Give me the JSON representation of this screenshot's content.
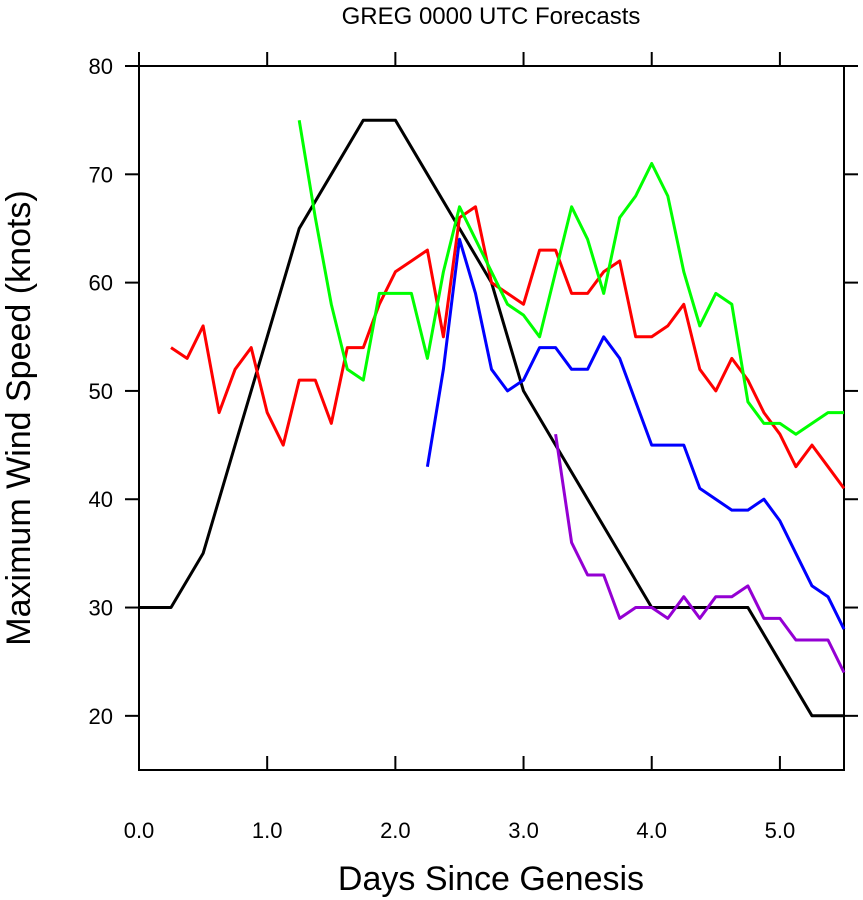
{
  "chart_data": {
    "type": "line",
    "title": "GREG 0000 UTC Forecasts",
    "xlabel": "Days Since Genesis",
    "ylabel": "Maximum Wind Speed (knots)",
    "xlim": [
      0,
      5.5
    ],
    "ylim": [
      15,
      80
    ],
    "x_ticks": [
      "0.0",
      "1.0",
      "2.0",
      "3.0",
      "4.0",
      "5.0"
    ],
    "y_ticks": [
      "20",
      "30",
      "40",
      "50",
      "60",
      "70",
      "80"
    ],
    "grid": false,
    "legend": "none",
    "series": [
      {
        "color": "#000000",
        "x": [
          0.0,
          0.25,
          0.5,
          0.75,
          1.0,
          1.25,
          1.5,
          1.75,
          2.0,
          2.25,
          2.5,
          2.75,
          3.0,
          3.25,
          3.5,
          3.75,
          4.0,
          4.25,
          4.5,
          4.75,
          5.0,
          5.25,
          5.5
        ],
        "y": [
          30,
          30,
          35,
          45,
          55,
          65,
          70,
          75,
          75,
          70,
          65,
          60,
          50,
          45,
          40,
          35,
          30,
          30,
          30,
          30,
          25,
          20,
          20
        ]
      },
      {
        "color": "#ff0000",
        "x": [
          0.25,
          0.375,
          0.5,
          0.625,
          0.75,
          0.875,
          1.0,
          1.125,
          1.25,
          1.375,
          1.5,
          1.625,
          1.75,
          1.875,
          2.0,
          2.125,
          2.25,
          2.375,
          2.5,
          2.625,
          2.75,
          2.875,
          3.0,
          3.125,
          3.25,
          3.375,
          3.5,
          3.625,
          3.75,
          3.875,
          4.0,
          4.125,
          4.25,
          4.375,
          4.5,
          4.625,
          4.75,
          4.875,
          5.0,
          5.125,
          5.25,
          5.375,
          5.5
        ],
        "y": [
          54,
          53,
          56,
          48,
          52,
          54,
          48,
          45,
          51,
          51,
          47,
          54,
          54,
          58,
          61,
          62,
          63,
          55,
          66,
          67,
          60,
          59,
          58,
          63,
          63,
          59,
          59,
          61,
          62,
          55,
          55,
          56,
          58,
          52,
          50,
          53,
          51,
          48,
          46,
          43,
          45,
          43,
          41
        ]
      },
      {
        "color": "#00ff00",
        "x": [
          1.25,
          1.375,
          1.5,
          1.625,
          1.75,
          1.875,
          2.0,
          2.125,
          2.25,
          2.375,
          2.5,
          2.625,
          2.75,
          2.875,
          3.0,
          3.125,
          3.25,
          3.375,
          3.5,
          3.625,
          3.75,
          3.875,
          4.0,
          4.125,
          4.25,
          4.375,
          4.5,
          4.625,
          4.75,
          4.875,
          5.0,
          5.125,
          5.25,
          5.375,
          5.5
        ],
        "y": [
          75,
          66,
          58,
          52,
          51,
          59,
          59,
          59,
          53,
          61,
          67,
          64,
          61,
          58,
          57,
          55,
          61,
          67,
          64,
          59,
          66,
          68,
          71,
          68,
          61,
          56,
          59,
          58,
          49,
          47,
          47,
          46,
          47,
          48,
          48
        ]
      },
      {
        "color": "#0000ff",
        "x": [
          2.25,
          2.375,
          2.5,
          2.625,
          2.75,
          2.875,
          3.0,
          3.125,
          3.25,
          3.375,
          3.5,
          3.625,
          3.75,
          3.875,
          4.0,
          4.125,
          4.25,
          4.375,
          4.5,
          4.625,
          4.75,
          4.875,
          5.0,
          5.125,
          5.25,
          5.375,
          5.5
        ],
        "y": [
          43,
          52,
          64,
          59,
          52,
          50,
          51,
          54,
          54,
          52,
          52,
          55,
          53,
          49,
          45,
          45,
          45,
          41,
          40,
          39,
          39,
          40,
          38,
          35,
          32,
          31,
          28
        ]
      },
      {
        "color": "#9400d3",
        "x": [
          3.25,
          3.375,
          3.5,
          3.625,
          3.75,
          3.875,
          4.0,
          4.125,
          4.25,
          4.375,
          4.5,
          4.625,
          4.75,
          4.875,
          5.0,
          5.125,
          5.25,
          5.375,
          5.5
        ],
        "y": [
          46,
          36,
          33,
          33,
          29,
          30,
          30,
          29,
          31,
          29,
          31,
          31,
          32,
          29,
          29,
          27,
          27,
          27,
          24
        ]
      }
    ]
  }
}
